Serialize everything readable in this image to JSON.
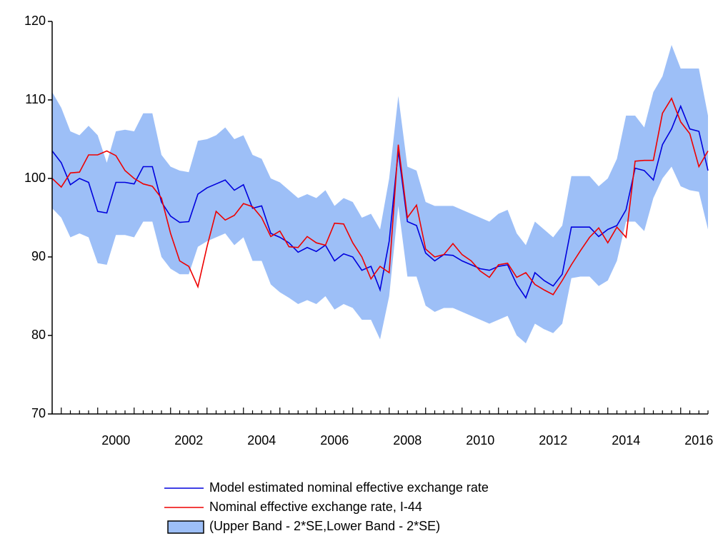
{
  "chart_data": {
    "type": "line",
    "categories": [
      null,
      null,
      null,
      null,
      null,
      null,
      null,
      "2000",
      null,
      null,
      null,
      null,
      null,
      null,
      null,
      "2002",
      null,
      null,
      null,
      null,
      null,
      null,
      null,
      "2004",
      null,
      null,
      null,
      null,
      null,
      null,
      null,
      "2006",
      null,
      null,
      null,
      null,
      null,
      null,
      null,
      "2008",
      null,
      null,
      null,
      null,
      null,
      null,
      null,
      "2010",
      null,
      null,
      null,
      null,
      null,
      null,
      null,
      "2012",
      null,
      null,
      null,
      null,
      null,
      null,
      null,
      "2014",
      null,
      null,
      null,
      null,
      null,
      null,
      null,
      "2016",
      null
    ],
    "ylim": [
      70,
      120
    ],
    "yticks": [
      70,
      80,
      90,
      100,
      110,
      120
    ],
    "band": {
      "name": "(Upper Band - 2*SE,Lower Band - 2*SE)",
      "color": "#9dbff7",
      "upper": [
        111,
        109,
        106,
        105.5,
        106.7,
        105.5,
        102,
        106,
        106.2,
        106,
        108.3,
        108.3,
        103,
        101.5,
        101,
        100.8,
        104.8,
        105,
        105.5,
        106.5,
        105,
        105.5,
        103,
        102.5,
        100,
        99.5,
        98.5,
        97.5,
        98,
        97.5,
        98.5,
        96.5,
        97.5,
        97,
        95,
        95.5,
        93.5,
        100,
        110.5,
        101.5,
        101,
        97,
        96.5,
        96.5,
        96.5,
        96,
        95.5,
        95,
        94.5,
        95.5,
        96,
        93,
        91.5,
        94.5,
        93.5,
        92.5,
        94,
        100.3,
        100.3,
        100.3,
        99,
        100,
        102.5,
        108,
        108,
        106.5,
        111,
        113,
        117,
        114,
        114,
        114,
        108
      ],
      "lower": [
        96.2,
        95,
        92.5,
        93,
        92.5,
        89.2,
        89,
        92.8,
        92.8,
        92.5,
        94.5,
        94.5,
        90,
        88.5,
        87.8,
        87.8,
        91.3,
        92,
        92.5,
        93,
        91.5,
        92.5,
        89.5,
        89.5,
        86.5,
        85.5,
        84.8,
        84,
        84.5,
        84,
        85,
        83.3,
        84,
        83.5,
        82,
        82,
        79.5,
        85,
        96.5,
        87.5,
        87.5,
        83.8,
        83,
        83.5,
        83.5,
        83,
        82.5,
        82,
        81.5,
        82,
        82.5,
        80,
        79,
        81.5,
        80.8,
        80.3,
        81.5,
        87.3,
        87.5,
        87.5,
        86.3,
        87,
        89.5,
        94.5,
        94.5,
        93.3,
        97.5,
        100,
        101.5,
        99,
        98.5,
        98.3,
        93.5
      ]
    },
    "series": [
      {
        "name": "Model estimated nominal effective exchange rate",
        "color": "#0000dd",
        "values": [
          103.5,
          102,
          99.2,
          100,
          99.5,
          95.8,
          95.6,
          99.5,
          99.5,
          99.3,
          101.5,
          101.5,
          97,
          95.2,
          94.4,
          94.5,
          98,
          98.8,
          99.3,
          99.8,
          98.5,
          99.2,
          96.2,
          96.5,
          93,
          92.5,
          91.8,
          90.6,
          91.2,
          90.7,
          91.5,
          89.5,
          90.4,
          90,
          88.3,
          88.8,
          85.8,
          92,
          103.5,
          94.5,
          94,
          90.5,
          89.5,
          90.3,
          90.2,
          89.5,
          89,
          88.5,
          88.3,
          88.8,
          89,
          86.5,
          84.8,
          88,
          87,
          86.3,
          87.8,
          93.8,
          93.8,
          93.8,
          92.6,
          93.5,
          94,
          96,
          101.3,
          101,
          99.8,
          104.3,
          106.3,
          109.2,
          106.3,
          106,
          101
        ]
      },
      {
        "name": "Nominal effective exchange rate, I-44",
        "color": "#ee0000",
        "values": [
          100,
          98.9,
          100.7,
          100.8,
          103,
          103,
          103.5,
          102.9,
          101,
          100,
          99.3,
          99,
          97.5,
          93,
          89.5,
          88.8,
          86.2,
          91.3,
          95.8,
          94.7,
          95.3,
          96.8,
          96.4,
          95,
          92.6,
          93.3,
          91.3,
          91.2,
          92.6,
          91.8,
          91.5,
          94.3,
          94.2,
          91.8,
          90,
          87.2,
          88.8,
          88,
          104.3,
          95,
          96.6,
          91,
          90,
          90.3,
          91.7,
          90.3,
          89.5,
          88.2,
          87.4,
          89,
          89.2,
          87.4,
          88,
          86.5,
          85.8,
          85.2,
          87,
          89,
          90.8,
          92.5,
          93.7,
          91.8,
          93.8,
          92.5,
          102.2,
          102.3,
          102.3,
          108.3,
          110.2,
          107.2,
          105.7,
          101.5,
          103.5
        ]
      }
    ]
  }
}
